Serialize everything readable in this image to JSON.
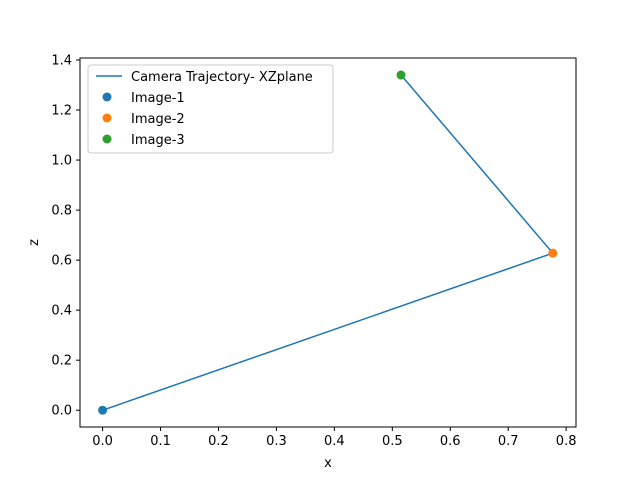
{
  "chart_data": {
    "type": "line",
    "xlabel": "x",
    "ylabel": "z",
    "xlim": [
      -0.039,
      0.817
    ],
    "ylim": [
      -0.067,
      1.408
    ],
    "x_ticks": [
      0.0,
      0.1,
      0.2,
      0.3,
      0.4,
      0.5,
      0.6,
      0.7,
      0.8
    ],
    "x_tick_labels": [
      "0.0",
      "0.1",
      "0.2",
      "0.3",
      "0.4",
      "0.5",
      "0.6",
      "0.7",
      "0.8"
    ],
    "y_ticks": [
      0.0,
      0.2,
      0.4,
      0.6,
      0.8,
      1.0,
      1.2,
      1.4
    ],
    "y_tick_labels": [
      "0.0",
      "0.2",
      "0.4",
      "0.6",
      "0.8",
      "1.0",
      "1.2",
      "1.4"
    ],
    "grid": false,
    "legend_position": "top-left",
    "line_series": {
      "name": "Camera Trajectory- XZplane",
      "color": "#1f77b4",
      "x": [
        0.0,
        0.777,
        0.515
      ],
      "y": [
        0.0,
        0.628,
        1.34
      ]
    },
    "scatter_series": [
      {
        "name": "Image-1",
        "color": "#1f77b4",
        "x": 0.0,
        "y": 0.0
      },
      {
        "name": "Image-2",
        "color": "#ff7f0e",
        "x": 0.777,
        "y": 0.628
      },
      {
        "name": "Image-3",
        "color": "#2ca02c",
        "x": 0.515,
        "y": 1.34
      }
    ]
  }
}
